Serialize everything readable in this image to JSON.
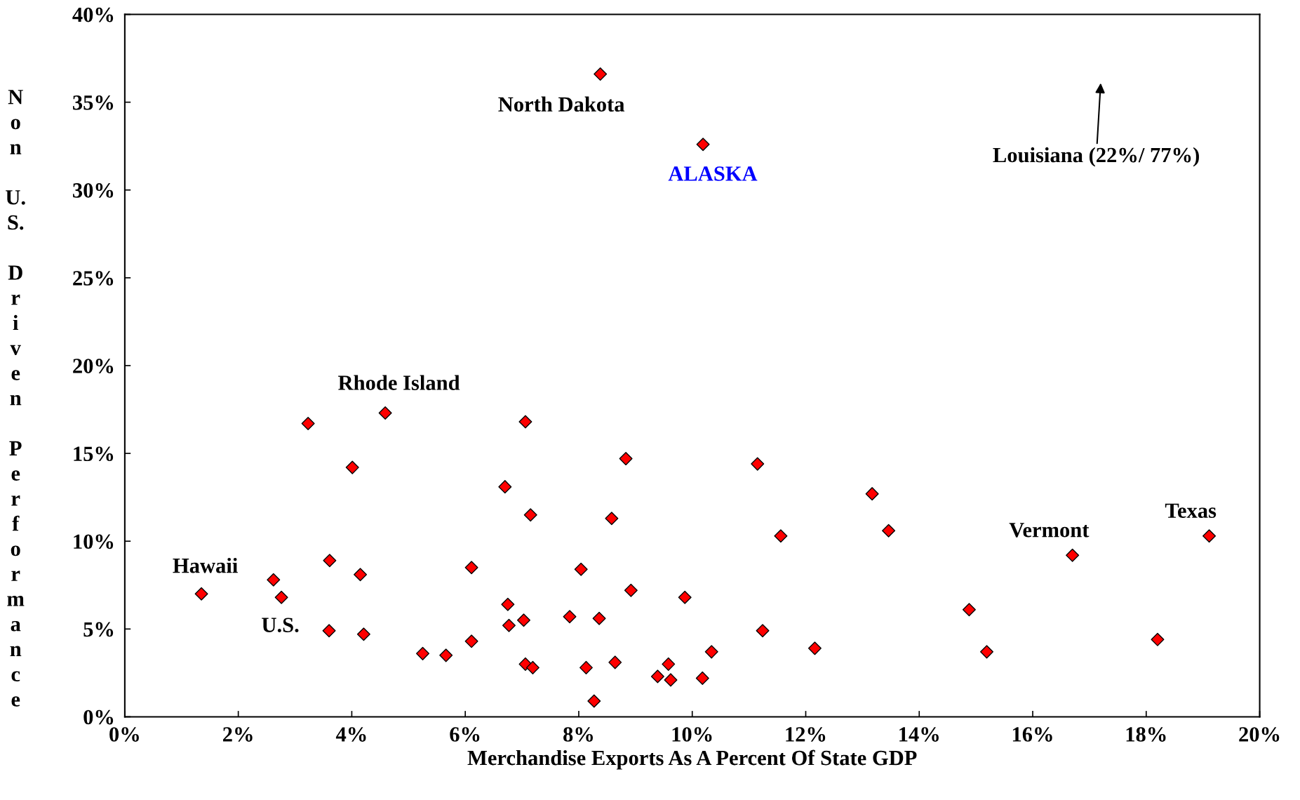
{
  "chart_data": {
    "type": "scatter",
    "xlabel": "Merchandise Exports As A Percent Of State GDP",
    "ylabel": "Non U.S. Driven Performance",
    "series": [
      {
        "color": "#ff0000",
        "x": [
          8.38,
          10.19,
          4.59,
          3.23,
          7.06,
          4.01,
          8.83,
          11.15,
          6.7,
          13.17,
          7.15,
          8.58,
          13.46,
          11.56,
          19.11,
          16.7,
          3.61,
          4.15,
          6.11,
          8.04,
          1.35,
          2.62,
          2.76,
          8.92,
          9.87,
          6.75,
          7.84,
          7.03,
          8.36,
          6.77,
          14.88,
          11.24,
          3.6,
          4.21,
          6.11,
          18.2,
          12.16,
          10.34,
          15.19,
          5.25,
          5.66,
          8.64,
          7.06,
          9.58,
          7.19,
          8.13,
          9.39,
          9.62,
          10.18,
          8.27
        ],
        "values": [
          36.6,
          32.6,
          17.3,
          16.7,
          16.8,
          14.2,
          14.7,
          14.4,
          13.1,
          12.7,
          11.5,
          11.3,
          10.6,
          10.3,
          10.3,
          9.2,
          8.9,
          8.1,
          8.5,
          8.4,
          7.0,
          7.8,
          6.8,
          7.2,
          6.8,
          6.4,
          5.7,
          5.5,
          5.6,
          5.2,
          6.1,
          4.9,
          4.9,
          4.7,
          4.3,
          4.4,
          3.9,
          3.7,
          3.7,
          3.6,
          3.5,
          3.1,
          3.0,
          3.0,
          2.8,
          2.8,
          2.3,
          2.1,
          2.2,
          0.9
        ]
      }
    ],
    "marker": "diamond",
    "xlim": [
      0,
      20
    ],
    "xticks": [
      {
        "value": 0,
        "label": "0%"
      },
      {
        "value": 2,
        "label": "2%"
      },
      {
        "value": 4,
        "label": "4%"
      },
      {
        "value": 6,
        "label": "6%"
      },
      {
        "value": 8,
        "label": "8%"
      },
      {
        "value": 10,
        "label": "10%"
      },
      {
        "value": 12,
        "label": "12%"
      },
      {
        "value": 14,
        "label": "14%"
      },
      {
        "value": 16,
        "label": "16%"
      },
      {
        "value": 18,
        "label": "18%"
      },
      {
        "value": 20,
        "label": "20%"
      }
    ],
    "ylim": [
      0,
      40
    ],
    "yticks": [
      {
        "value": 0,
        "label": "0%"
      },
      {
        "value": 5,
        "label": "5%"
      },
      {
        "value": 10,
        "label": "10%"
      },
      {
        "value": 15,
        "label": "15%"
      },
      {
        "value": 20,
        "label": "20%"
      },
      {
        "value": 25,
        "label": "25%"
      },
      {
        "value": 30,
        "label": "30%"
      },
      {
        "value": 35,
        "label": "35%"
      },
      {
        "value": 40,
        "label": "40%"
      }
    ],
    "grid": false,
    "annotations": [
      {
        "text": "North Dakota",
        "x": 8.38,
        "y": 36.6
      },
      {
        "text": "ALASKA",
        "x": 10.19,
        "y": 32.6
      },
      {
        "text": "Rhode Island",
        "x": 4.59,
        "y": 17.3
      },
      {
        "text": "Texas",
        "x": 19.11,
        "y": 10.3
      },
      {
        "text": "Vermont",
        "x": 16.7,
        "y": 9.2
      },
      {
        "text": "Hawaii",
        "x": 1.35,
        "y": 7.0
      },
      {
        "text": "U.S.",
        "x": 3.6,
        "y": 4.9
      },
      "Louisiana (22%/ 77%)"
    ]
  }
}
